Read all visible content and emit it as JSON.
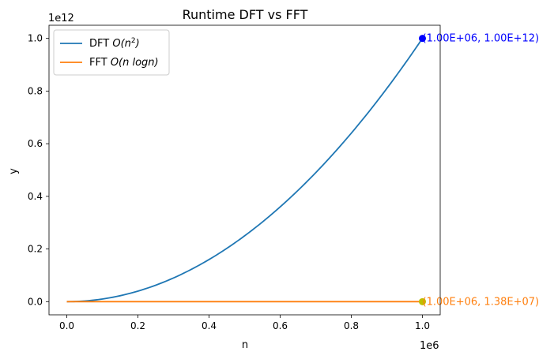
{
  "chart_data": {
    "type": "line",
    "title": "Runtime DFT vs FFT",
    "xlabel": "n",
    "ylabel": "y",
    "x_scale_label": "1e6",
    "y_scale_label": "1e12",
    "xlim": [
      -50000,
      1050000
    ],
    "ylim": [
      -0.05,
      1.05
    ],
    "x_ticks": [
      0,
      0.2,
      0.4,
      0.6,
      0.8,
      1.0
    ],
    "x_tick_labels": [
      "0.0",
      "0.2",
      "0.4",
      "0.6",
      "0.8",
      "1.0"
    ],
    "y_ticks": [
      0,
      0.2,
      0.4,
      0.6,
      0.8,
      1.0
    ],
    "y_tick_labels": [
      "0.0",
      "0.2",
      "0.4",
      "0.6",
      "0.8",
      "1.0"
    ],
    "legend_position": "top-left",
    "series": [
      {
        "name": "DFT O(n²)",
        "legend_prefix": "DFT ",
        "legend_math": "O(n",
        "legend_sup": "2",
        "legend_suffix": ")",
        "color": "#1f77b4",
        "x": [
          0,
          100000,
          200000,
          300000,
          400000,
          500000,
          600000,
          700000,
          800000,
          900000,
          1000000
        ],
        "y": [
          0,
          0.01,
          0.04,
          0.09,
          0.16,
          0.25,
          0.36,
          0.49,
          0.64,
          0.81,
          1.0
        ]
      },
      {
        "name": "FFT O(n logn)",
        "legend_prefix": "FFT ",
        "legend_math": "O(n logn)",
        "legend_sup": "",
        "legend_suffix": "",
        "color": "#ff7f0e",
        "x": [
          0,
          100000,
          200000,
          300000,
          400000,
          500000,
          600000,
          700000,
          800000,
          900000,
          1000000
        ],
        "y": [
          0,
          1.15e-06,
          2.44e-06,
          3.78e-06,
          5.16e-06,
          6.56e-06,
          7.98e-06,
          9.42e-06,
          1.088e-05,
          1.235e-05,
          1.38e-05
        ]
      }
    ],
    "annotations": [
      {
        "x": 1000000,
        "y": 1.0,
        "text": "(1.00E+06, 1.00E+12)",
        "color": "#0000ff",
        "marker_color": "#0000ff"
      },
      {
        "x": 1000000,
        "y": 1.38e-05,
        "text": "(1.00E+06, 1.38E+07)",
        "color": "#ff7f0e",
        "marker_color": "#bfbf00"
      }
    ]
  }
}
